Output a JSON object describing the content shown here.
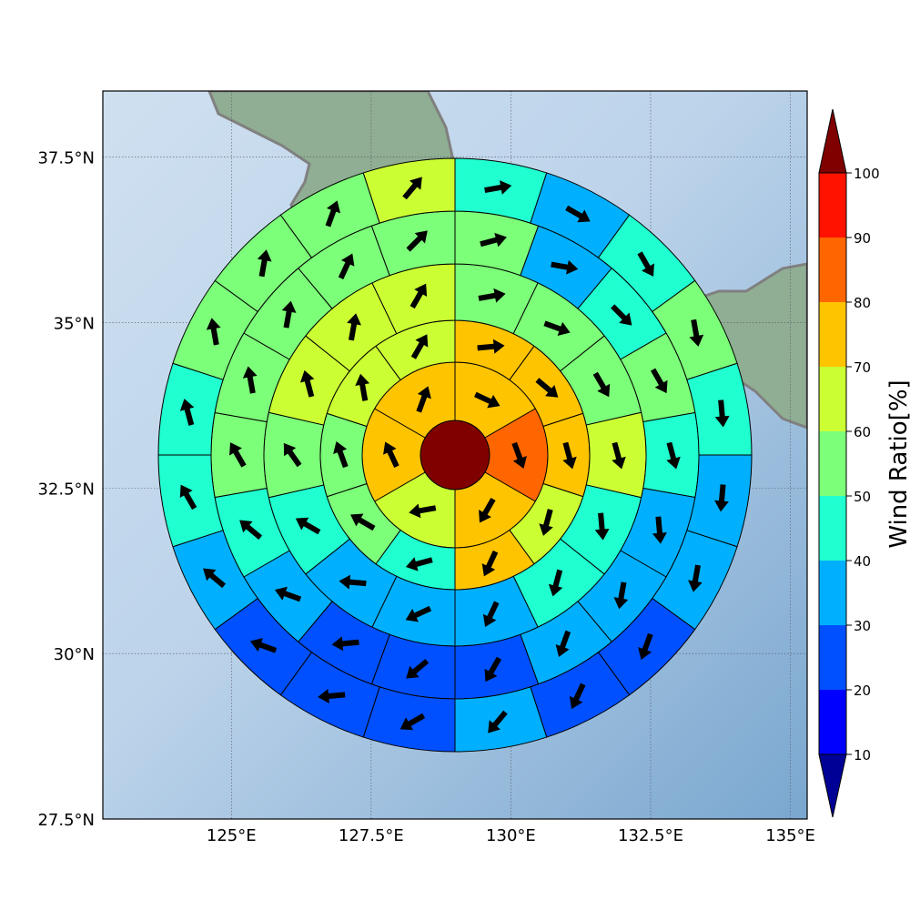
{
  "map": {
    "lon_range": [
      122.7,
      135.3
    ],
    "lat_range": [
      27.5,
      38.5
    ],
    "center": {
      "lon": 129.0,
      "lat": 33.0
    },
    "lon_ticks": [
      {
        "value": 125,
        "label": "125°E"
      },
      {
        "value": 127.5,
        "label": "127.5°E"
      },
      {
        "value": 130,
        "label": "130°E"
      },
      {
        "value": 132.5,
        "label": "132.5°E"
      },
      {
        "value": 135,
        "label": "135°E"
      }
    ],
    "lat_ticks": [
      {
        "value": 27.5,
        "label": "27.5°N"
      },
      {
        "value": 30,
        "label": "30°N"
      },
      {
        "value": 32.5,
        "label": "32.5°N"
      },
      {
        "value": 35,
        "label": "35°N"
      },
      {
        "value": 37.5,
        "label": "37.5°N"
      }
    ],
    "gridlines": true,
    "colors": {
      "sea": "#a9c7e0",
      "land": "#7fa38a",
      "coast": "#808080"
    }
  },
  "colorbar": {
    "label": "Wind Ratio[%]",
    "ticks": [
      "10",
      "20",
      "30",
      "40",
      "50",
      "60",
      "70",
      "80",
      "90",
      "100"
    ],
    "colors": [
      "#000096",
      "#0000ff",
      "#0050ff",
      "#00b0ff",
      "#20ffd0",
      "#7cff79",
      "#ccff33",
      "#ffc400",
      "#ff6600",
      "#ff1300",
      "#800000"
    ]
  },
  "chart_data": {
    "type": "polar-grid-map",
    "rings": [
      {
        "ring": 0,
        "sectors": [
          {
            "ratio": 100
          }
        ]
      },
      {
        "ring": 1,
        "sectors": [
          {
            "ratio": 75,
            "dir": 115
          },
          {
            "ratio": 85,
            "dir": 160
          },
          {
            "ratio": 75,
            "dir": 210
          },
          {
            "ratio": 65,
            "dir": 260
          },
          {
            "ratio": 75,
            "dir": 335
          },
          {
            "ratio": 75,
            "dir": 20
          }
        ]
      },
      {
        "ring": 2,
        "sectors": [
          {
            "ratio": 75,
            "dir": 85
          },
          {
            "ratio": 75,
            "dir": 130
          },
          {
            "ratio": 75,
            "dir": 165
          },
          {
            "ratio": 65,
            "dir": 195
          },
          {
            "ratio": 75,
            "dir": 205
          },
          {
            "ratio": 45,
            "dir": 255
          },
          {
            "ratio": 55,
            "dir": 300
          },
          {
            "ratio": 55,
            "dir": 340
          },
          {
            "ratio": 65,
            "dir": 350
          },
          {
            "ratio": 65,
            "dir": 30
          }
        ]
      },
      {
        "ring": 3,
        "sectors": [
          {
            "ratio": 55,
            "dir": 80
          },
          {
            "ratio": 55,
            "dir": 110
          },
          {
            "ratio": 55,
            "dir": 150
          },
          {
            "ratio": 65,
            "dir": 165
          },
          {
            "ratio": 45,
            "dir": 175
          },
          {
            "ratio": 45,
            "dir": 195
          },
          {
            "ratio": 35,
            "dir": 205
          },
          {
            "ratio": 35,
            "dir": 245
          },
          {
            "ratio": 35,
            "dir": 275
          },
          {
            "ratio": 45,
            "dir": 300
          },
          {
            "ratio": 55,
            "dir": 325
          },
          {
            "ratio": 65,
            "dir": 345
          },
          {
            "ratio": 65,
            "dir": 10
          },
          {
            "ratio": 65,
            "dir": 30
          }
        ]
      },
      {
        "ring": 4,
        "sectors": [
          {
            "ratio": 55,
            "dir": 75
          },
          {
            "ratio": 35,
            "dir": 100
          },
          {
            "ratio": 45,
            "dir": 135
          },
          {
            "ratio": 55,
            "dir": 150
          },
          {
            "ratio": 45,
            "dir": 165
          },
          {
            "ratio": 35,
            "dir": 175
          },
          {
            "ratio": 35,
            "dir": 190
          },
          {
            "ratio": 35,
            "dir": 200
          },
          {
            "ratio": 25,
            "dir": 210
          },
          {
            "ratio": 25,
            "dir": 230
          },
          {
            "ratio": 25,
            "dir": 265
          },
          {
            "ratio": 35,
            "dir": 290
          },
          {
            "ratio": 45,
            "dir": 310
          },
          {
            "ratio": 55,
            "dir": 330
          },
          {
            "ratio": 55,
            "dir": 350
          },
          {
            "ratio": 55,
            "dir": 10
          },
          {
            "ratio": 55,
            "dir": 25
          },
          {
            "ratio": 55,
            "dir": 45
          }
        ]
      },
      {
        "ring": 5,
        "sectors": [
          {
            "ratio": 45,
            "dir": 80
          },
          {
            "ratio": 35,
            "dir": 120
          },
          {
            "ratio": 45,
            "dir": 150
          },
          {
            "ratio": 55,
            "dir": 170
          },
          {
            "ratio": 45,
            "dir": 175
          },
          {
            "ratio": 35,
            "dir": 185
          },
          {
            "ratio": 35,
            "dir": 190
          },
          {
            "ratio": 25,
            "dir": 200
          },
          {
            "ratio": 25,
            "dir": 205
          },
          {
            "ratio": 35,
            "dir": 220
          },
          {
            "ratio": 25,
            "dir": 240
          },
          {
            "ratio": 25,
            "dir": 265
          },
          {
            "ratio": 25,
            "dir": 290
          },
          {
            "ratio": 35,
            "dir": 310
          },
          {
            "ratio": 45,
            "dir": 330
          },
          {
            "ratio": 45,
            "dir": 345
          },
          {
            "ratio": 55,
            "dir": 350
          },
          {
            "ratio": 55,
            "dir": 10
          },
          {
            "ratio": 55,
            "dir": 20
          },
          {
            "ratio": 65,
            "dir": 40
          }
        ]
      }
    ]
  }
}
